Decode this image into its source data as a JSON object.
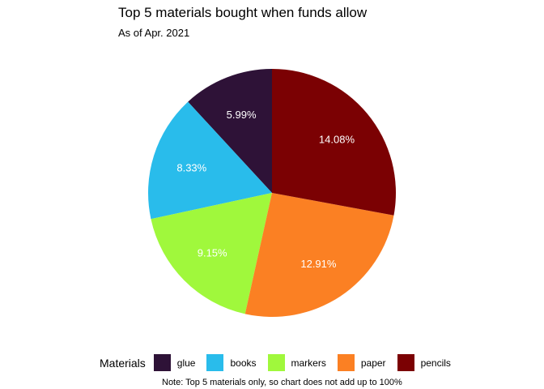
{
  "chart_data": {
    "type": "pie",
    "title": "Top 5 materials bought when funds allow",
    "subtitle": "As of Apr. 2021",
    "legend_title": "Materials",
    "legend_position": "bottom",
    "note": "Note: Top 5 materials only, so chart does not add up to 100%",
    "categories": [
      "glue",
      "books",
      "markers",
      "paper",
      "pencils"
    ],
    "values": [
      5.99,
      8.33,
      9.15,
      12.91,
      14.08
    ],
    "labels": [
      "5.99%",
      "8.33%",
      "9.15%",
      "12.91%",
      "14.08%"
    ],
    "colors": [
      "#2E1237",
      "#29BCEB",
      "#A0F83C",
      "#FB8023",
      "#7B0103"
    ]
  }
}
